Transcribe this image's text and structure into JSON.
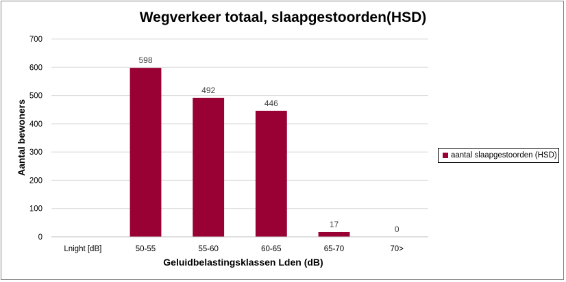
{
  "chart_data": {
    "type": "bar",
    "title": "Wegverkeer totaal, slaapgestoorden(HSD)",
    "xlabel": "Geluidbelastingsklassen Lden (dB)",
    "ylabel": "Aantal bewoners",
    "categories": [
      "Lnight [dB]",
      "50-55",
      "55-60",
      "60-65",
      "65-70",
      "70>"
    ],
    "series": [
      {
        "name": "aantal slaapgestoorden (HSD)",
        "values": [
          null,
          598,
          492,
          446,
          17,
          0
        ],
        "color": "#990033"
      }
    ],
    "data_labels": [
      "",
      "598",
      "492",
      "446",
      "17",
      "0"
    ],
    "yticks": [
      0,
      100,
      200,
      300,
      400,
      500,
      600,
      700
    ],
    "ylim": [
      0,
      700
    ],
    "grid": true,
    "legend_position": "right"
  }
}
